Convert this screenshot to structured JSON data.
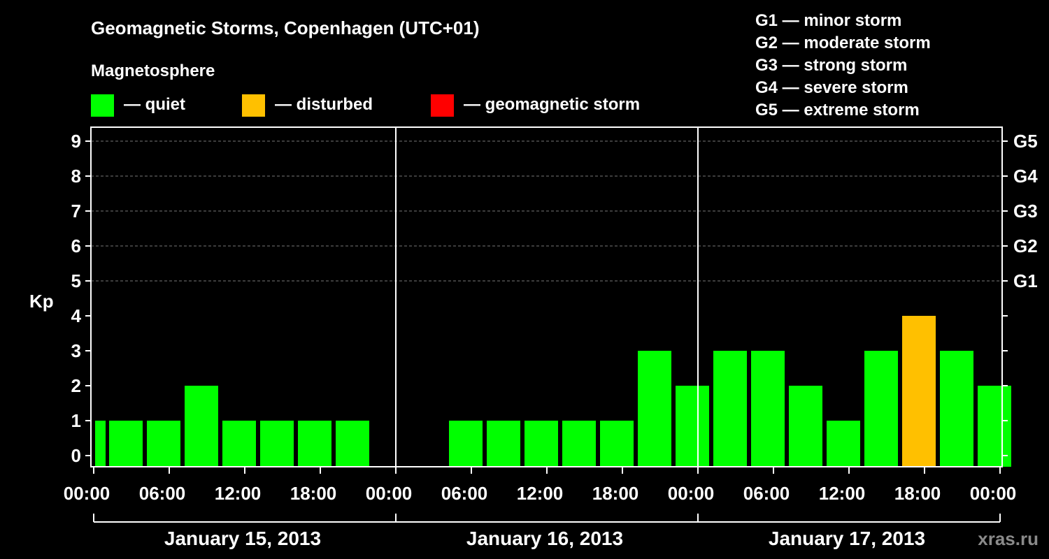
{
  "title": "Geomagnetic Storms, Copenhagen (UTC+01)",
  "legend": {
    "heading": "Magnetosphere",
    "items": [
      {
        "label": "— quiet",
        "color": "#00ff00"
      },
      {
        "label": "— disturbed",
        "color": "#ffc000"
      },
      {
        "label": "— geomagnetic storm",
        "color": "#ff0000"
      }
    ]
  },
  "storm_scale": [
    "G1 — minor storm",
    "G2 — moderate storm",
    "G3 — strong storm",
    "G4 — severe storm",
    "G5 — extreme storm"
  ],
  "watermark": "xras.ru",
  "chart_data": {
    "type": "bar",
    "ylabel": "Kp",
    "ylim": [
      0,
      9
    ],
    "y_ticks": [
      "0",
      "1",
      "2",
      "3",
      "4",
      "5",
      "6",
      "7",
      "8",
      "9"
    ],
    "right_ticks": [
      {
        "kp": 5,
        "label": "G1"
      },
      {
        "kp": 6,
        "label": "G2"
      },
      {
        "kp": 7,
        "label": "G3"
      },
      {
        "kp": 8,
        "label": "G4"
      },
      {
        "kp": 9,
        "label": "G5"
      }
    ],
    "x_ticks": [
      "00:00",
      "06:00",
      "12:00",
      "18:00",
      "00:00",
      "06:00",
      "12:00",
      "18:00",
      "00:00",
      "06:00",
      "12:00",
      "18:00",
      "00:00"
    ],
    "days": [
      "January 15, 2013",
      "January 16, 2013",
      "January 17, 2013"
    ],
    "grid": "dashed horizontal at Kp 5-9",
    "bars": [
      {
        "start": "2013-01-15 00:00",
        "kp": 1,
        "status": "quiet"
      },
      {
        "start": "2013-01-15 01:00",
        "kp": 1,
        "status": "quiet"
      },
      {
        "start": "2013-01-15 04:00",
        "kp": 1,
        "status": "quiet"
      },
      {
        "start": "2013-01-15 07:00",
        "kp": 2,
        "status": "quiet"
      },
      {
        "start": "2013-01-15 10:00",
        "kp": 1,
        "status": "quiet"
      },
      {
        "start": "2013-01-15 13:00",
        "kp": 1,
        "status": "quiet"
      },
      {
        "start": "2013-01-15 16:00",
        "kp": 1,
        "status": "quiet"
      },
      {
        "start": "2013-01-15 19:00",
        "kp": 1,
        "status": "quiet"
      },
      {
        "start": "2013-01-16 04:00",
        "kp": 1,
        "status": "quiet"
      },
      {
        "start": "2013-01-16 07:00",
        "kp": 1,
        "status": "quiet"
      },
      {
        "start": "2013-01-16 10:00",
        "kp": 1,
        "status": "quiet"
      },
      {
        "start": "2013-01-16 13:00",
        "kp": 1,
        "status": "quiet"
      },
      {
        "start": "2013-01-16 16:00",
        "kp": 1,
        "status": "quiet"
      },
      {
        "start": "2013-01-16 19:00",
        "kp": 3,
        "status": "quiet"
      },
      {
        "start": "2013-01-16 22:00",
        "kp": 2,
        "status": "quiet"
      },
      {
        "start": "2013-01-17 01:00",
        "kp": 3,
        "status": "quiet"
      },
      {
        "start": "2013-01-17 04:00",
        "kp": 3,
        "status": "quiet"
      },
      {
        "start": "2013-01-17 07:00",
        "kp": 2,
        "status": "quiet"
      },
      {
        "start": "2013-01-17 10:00",
        "kp": 1,
        "status": "quiet"
      },
      {
        "start": "2013-01-17 13:00",
        "kp": 3,
        "status": "quiet"
      },
      {
        "start": "2013-01-17 16:00",
        "kp": 4,
        "status": "disturbed"
      },
      {
        "start": "2013-01-17 19:00",
        "kp": 3,
        "status": "quiet"
      },
      {
        "start": "2013-01-17 22:00",
        "kp": 2,
        "status": "quiet"
      }
    ],
    "status_colors": {
      "quiet": "#00ff00",
      "disturbed": "#ffc000",
      "storm": "#ff0000"
    }
  }
}
